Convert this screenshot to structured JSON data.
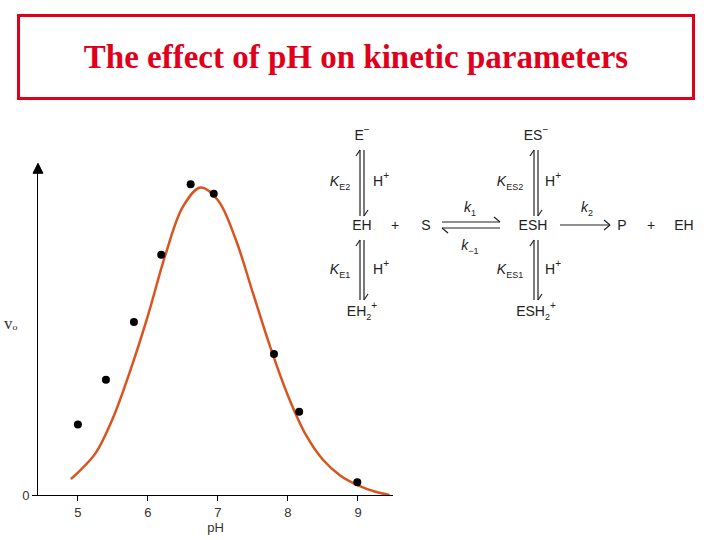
{
  "title": "The effect of pH on kinetic parameters",
  "chart_data": {
    "type": "scatter",
    "xlabel": "pH",
    "ylabel": "vₒ",
    "xlim": [
      4.43,
      9.5
    ],
    "xticks": [
      5,
      6,
      7,
      8,
      9
    ],
    "ylim": [
      0,
      1.03
    ],
    "yticks": [
      0
    ],
    "grid": false,
    "series": [
      {
        "type": "line",
        "color": "#d9541e",
        "x": [
          4.9,
          5.0,
          5.25,
          5.5,
          5.75,
          6.0,
          6.25,
          6.5,
          6.75,
          7.0,
          7.25,
          7.5,
          7.75,
          8.0,
          8.25,
          8.5,
          8.75,
          9.0,
          9.25,
          9.45
        ],
        "values": [
          0.05,
          0.07,
          0.13,
          0.24,
          0.39,
          0.56,
          0.75,
          0.9,
          0.96,
          0.92,
          0.8,
          0.63,
          0.46,
          0.31,
          0.19,
          0.11,
          0.06,
          0.03,
          0.01,
          0.0
        ]
      },
      {
        "type": "scatter",
        "marker": "circle",
        "color": "#000000",
        "x": [
          5.0,
          5.4,
          5.8,
          6.19,
          6.61,
          6.94,
          7.8,
          8.16,
          8.99
        ],
        "values": [
          0.22,
          0.36,
          0.54,
          0.75,
          0.97,
          0.94,
          0.44,
          0.26,
          0.04
        ]
      }
    ]
  },
  "scheme": {
    "labels": [
      {
        "text": "E",
        "sup": "−"
      },
      {
        "text": "ES",
        "sup": "−"
      },
      {
        "text": "K",
        "sub": "E2"
      },
      {
        "text": "H",
        "sup": "+"
      },
      {
        "text": "K",
        "sub": "ES2"
      },
      {
        "text": "H",
        "sup": "+"
      },
      {
        "text": "EH"
      },
      {
        "text": "+"
      },
      {
        "text": "S"
      },
      {
        "text": "k",
        "sub": "1"
      },
      {
        "text": "k",
        "sub": "−1"
      },
      {
        "text": "ESH"
      },
      {
        "text": "k",
        "sub": "2"
      },
      {
        "text": "P"
      },
      {
        "text": "+"
      },
      {
        "text": "EH"
      },
      {
        "text": "K",
        "sub": "E1"
      },
      {
        "text": "H",
        "sup": "+"
      },
      {
        "text": "K",
        "sub": "ES1"
      },
      {
        "text": "H",
        "sup": "+"
      },
      {
        "text": "EH",
        "sub": "2",
        "sup": "+"
      },
      {
        "text": "ESH",
        "sub": "2",
        "sup": "+"
      }
    ]
  }
}
